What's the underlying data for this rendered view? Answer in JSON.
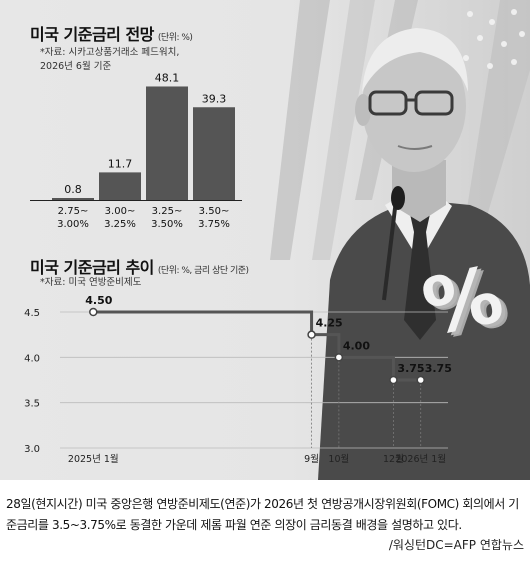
{
  "forecast": {
    "title": "미국 기준금리 전망",
    "unit": "(단위: %)",
    "source_line1": "*자료: 시카고상품거래소 페드워치,",
    "source_line2": "2026년 6월 기준"
  },
  "trend": {
    "title": "미국 기준금리 추이",
    "unit": "(단위: %, 금리 상단 기준)",
    "source": "*자료: 미국 연방준비제도"
  },
  "photo": {
    "symbol": "%"
  },
  "caption": {
    "text": "28일(현지시간) 미국 중앙은행 연방준비제도(연준)가 2026년 첫 연방공개시장위원회(FOMC) 회의에서 기준금리를 3.5~3.75%로 동결한 가운데 제롬 파월 연준 의장이 금리동결 배경을 설명하고 있다.",
    "credit": "/워싱턴DC=AFP 연합뉴스"
  },
  "chart_data": [
    {
      "type": "bar",
      "categories": [
        "2.75~3.00%",
        "3.00~3.25%",
        "3.25~3.50%",
        "3.50~3.75%"
      ],
      "category_lines": [
        [
          "2.75~",
          "3.00%"
        ],
        [
          "3.00~",
          "3.25%"
        ],
        [
          "3.25~",
          "3.50%"
        ],
        [
          "3.50~",
          "3.75%"
        ]
      ],
      "values": [
        0.8,
        11.7,
        48.1,
        39.3
      ],
      "value_labels": [
        "0.8",
        "11.7",
        "48.1",
        "39.3"
      ],
      "title": "미국 기준금리 전망",
      "ylim": [
        0,
        50
      ],
      "bar_color": "#555555"
    },
    {
      "type": "line",
      "step": true,
      "title": "미국 기준금리 추이",
      "x": [
        "2025-01",
        "2025-09",
        "2025-10",
        "2025-12",
        "2026-01"
      ],
      "y": [
        4.5,
        4.25,
        4.0,
        3.75,
        3.75
      ],
      "point_labels": [
        "4.50",
        "4.25",
        "4.00",
        "3.75",
        "3.75"
      ],
      "xticks": [
        "2025-01",
        "2025-09",
        "2025-10",
        "2025-12",
        "2026-01"
      ],
      "xtick_labels": [
        "2025년 1월",
        "9월",
        "10월",
        "12월",
        "2026년 1월"
      ],
      "yticks": [
        3.0,
        3.5,
        4.0,
        4.5
      ],
      "ytick_labels": [
        "3.0",
        "3.5",
        "4.0",
        "4.5"
      ],
      "ylim": [
        3.0,
        4.5
      ],
      "xlim": [
        "2024-12",
        "2026-02"
      ],
      "grid": true,
      "line_color": "#555555"
    }
  ]
}
